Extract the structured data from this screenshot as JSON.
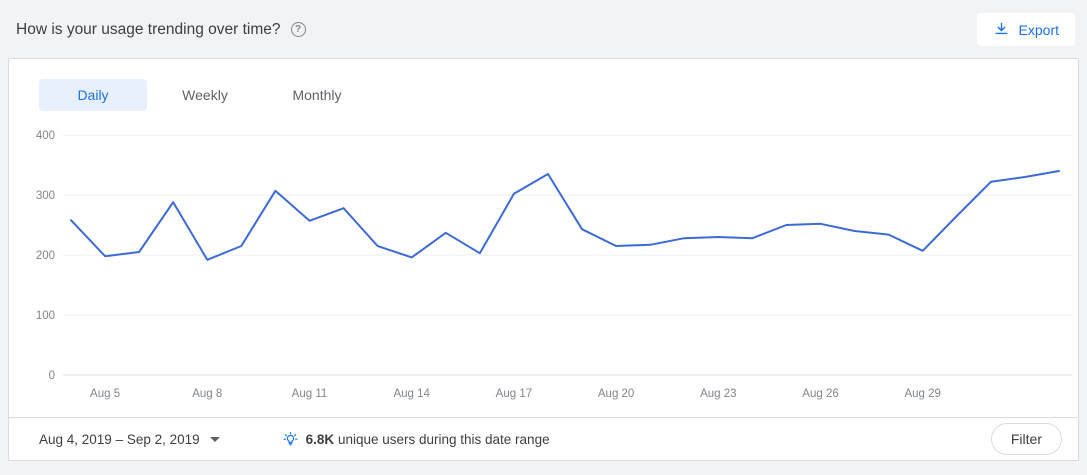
{
  "header": {
    "title": "How is your usage trending over time?",
    "help_glyph": "?",
    "export_label": "Export"
  },
  "tabs": [
    {
      "label": "Daily",
      "active": true
    },
    {
      "label": "Weekly",
      "active": false
    },
    {
      "label": "Monthly",
      "active": false
    }
  ],
  "chart_data": {
    "type": "line",
    "title": "",
    "xlabel": "",
    "ylabel": "",
    "x": [
      "Aug 4",
      "Aug 5",
      "Aug 6",
      "Aug 7",
      "Aug 8",
      "Aug 9",
      "Aug 10",
      "Aug 11",
      "Aug 12",
      "Aug 13",
      "Aug 14",
      "Aug 15",
      "Aug 16",
      "Aug 17",
      "Aug 18",
      "Aug 19",
      "Aug 20",
      "Aug 21",
      "Aug 22",
      "Aug 23",
      "Aug 24",
      "Aug 25",
      "Aug 26",
      "Aug 27",
      "Aug 28",
      "Aug 29",
      "Aug 30",
      "Aug 31",
      "Sep 1",
      "Sep 2"
    ],
    "values": [
      258,
      198,
      205,
      288,
      192,
      215,
      307,
      257,
      278,
      215,
      196,
      237,
      203,
      302,
      335,
      243,
      215,
      217,
      228,
      230,
      228,
      250,
      252,
      240,
      234,
      207,
      265,
      322,
      330,
      340
    ],
    "x_tick_labels": [
      "Aug 5",
      "Aug 8",
      "Aug 11",
      "Aug 14",
      "Aug 17",
      "Aug 20",
      "Aug 23",
      "Aug 26",
      "Aug 29"
    ],
    "ylim": [
      0,
      400
    ],
    "yticks": [
      0,
      100,
      200,
      300,
      400
    ],
    "grid": true,
    "legend": false,
    "line_color": "#3c6bd6",
    "grid_color": "#ebedf0",
    "axis_label_color": "#80868b"
  },
  "footer": {
    "date_range": "Aug 4, 2019 – Sep 2, 2019",
    "insight_value": "6.8K",
    "insight_text": "unique users during this date range",
    "filter_label": "Filter"
  },
  "colors": {
    "accent_blue": "#1a73e8",
    "active_tab_bg": "#e8f0fe",
    "page_bg": "#f1f3f4",
    "card_border": "#dadce0"
  }
}
